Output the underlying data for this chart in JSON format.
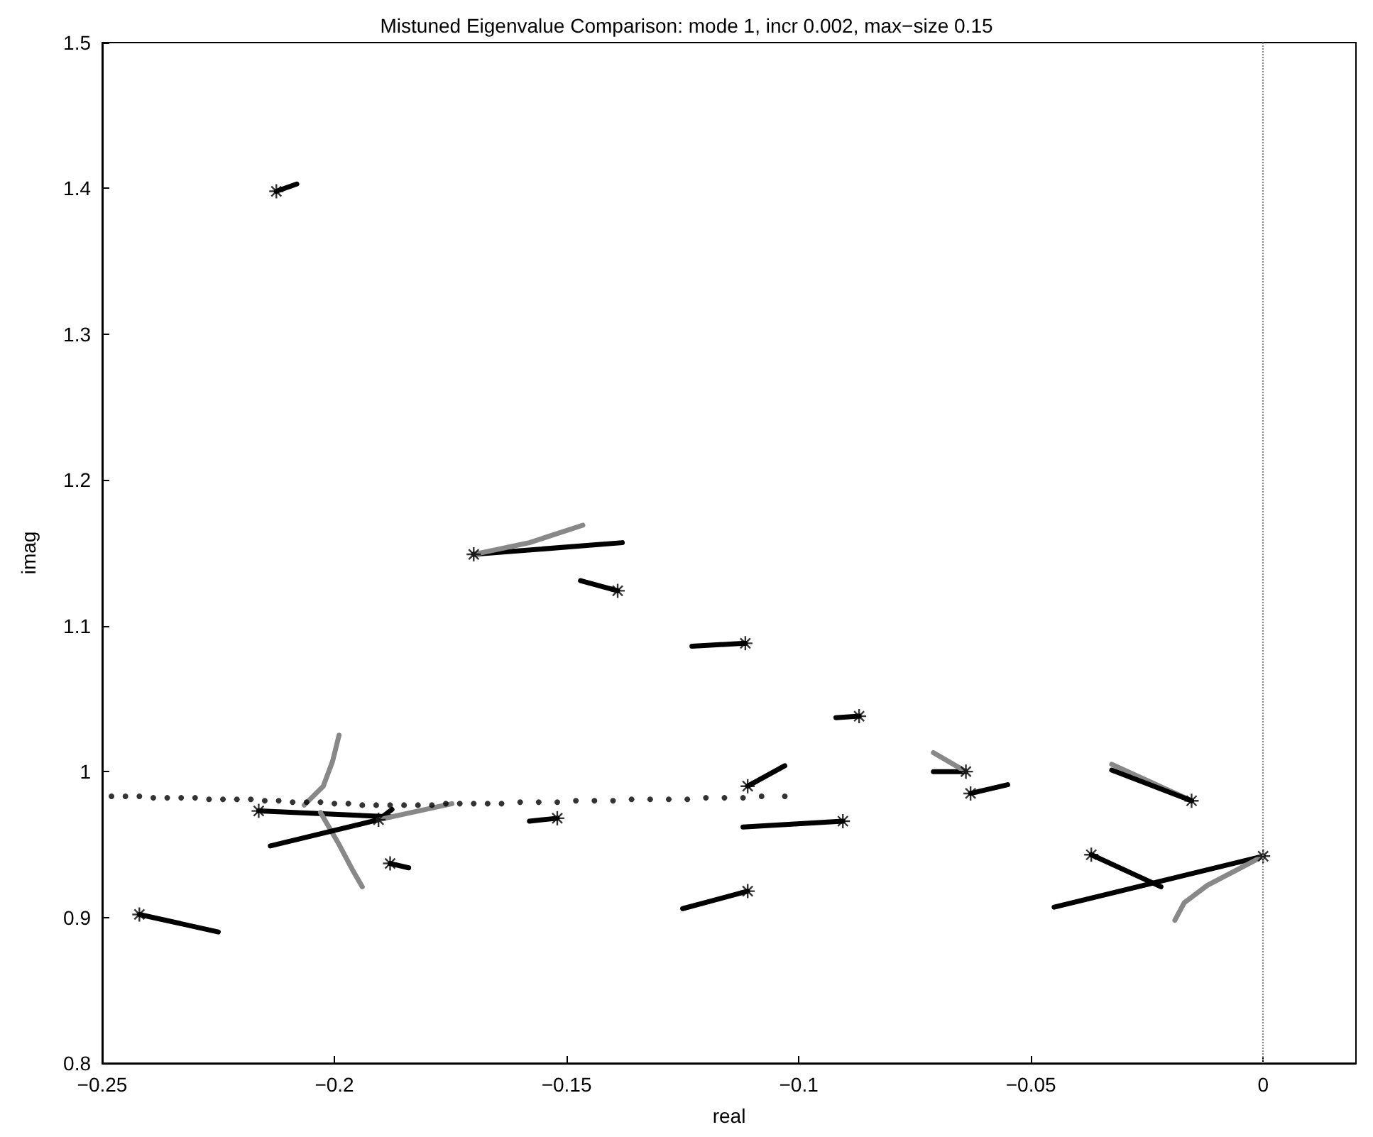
{
  "chart_data": {
    "type": "line",
    "title": "Mistuned Eigenvalue Comparison: mode 1, incr 0.002, max−size 0.15",
    "xlabel": "real",
    "ylabel": "imag",
    "xlim": [
      -0.25,
      0.02
    ],
    "xticks": [
      {
        "value": -0.25,
        "label": "−0.25"
      },
      {
        "value": -0.2,
        "label": "−0.2"
      },
      {
        "value": -0.15,
        "label": "−0.15"
      },
      {
        "value": -0.1,
        "label": "−0.1"
      },
      {
        "value": -0.05,
        "label": "−0.05"
      },
      0
    ],
    "ylim": [
      0.8,
      1.5
    ],
    "yticks": [
      0.8,
      0.9,
      1,
      1.1,
      1.2,
      1.3,
      1.4,
      1.5
    ],
    "grid": false,
    "ref_lines": [
      {
        "axis": "x",
        "value": 0,
        "color": "#888888",
        "line_style": "dotted"
      }
    ],
    "series": [
      {
        "color": "#000000",
        "marker": "none",
        "x": [
          -0.2125,
          -0.2081
        ],
        "values": [
          1.398,
          1.403
        ]
      },
      {
        "color": "#000000",
        "marker": "none",
        "x": [
          -0.17,
          -0.138
        ],
        "values": [
          1.149,
          1.157
        ]
      },
      {
        "color": "#888888",
        "marker": "none",
        "x": [
          -0.17,
          -0.158,
          -0.1465
        ],
        "values": [
          1.149,
          1.157,
          1.169
        ]
      },
      {
        "color": "#000000",
        "marker": "none",
        "x": [
          -0.147,
          -0.139
        ],
        "values": [
          1.131,
          1.124
        ]
      },
      {
        "color": "#000000",
        "marker": "none",
        "x": [
          -0.123,
          -0.1115
        ],
        "values": [
          1.086,
          1.088
        ]
      },
      {
        "color": "#000000",
        "marker": "none",
        "x": [
          -0.092,
          -0.087
        ],
        "values": [
          1.037,
          1.038
        ]
      },
      {
        "color": "#000000",
        "marker": "none",
        "x": [
          -0.111,
          -0.103
        ],
        "values": [
          0.99,
          1.004
        ]
      },
      {
        "color": "#000000",
        "marker": "none",
        "x": [
          -0.112,
          -0.0905
        ],
        "values": [
          0.962,
          0.966
        ]
      },
      {
        "color": "#000000",
        "marker": "none",
        "x": [
          -0.071,
          -0.064
        ],
        "values": [
          1.0,
          1.0
        ]
      },
      {
        "color": "#888888",
        "marker": "none",
        "x": [
          -0.071,
          -0.064
        ],
        "values": [
          1.013,
          1.0
        ]
      },
      {
        "color": "#000000",
        "marker": "none",
        "x": [
          -0.063,
          -0.055
        ],
        "values": [
          0.985,
          0.991
        ]
      },
      {
        "color": "#888888",
        "marker": "none",
        "x": [
          -0.0326,
          -0.0154
        ],
        "values": [
          1.005,
          0.98
        ]
      },
      {
        "color": "#000000",
        "marker": "none",
        "x": [
          -0.0326,
          -0.0154
        ],
        "values": [
          1.001,
          0.98
        ]
      },
      {
        "color": "#000000",
        "marker": "none",
        "x": [
          -0.158,
          -0.152
        ],
        "values": [
          0.966,
          0.968
        ]
      },
      {
        "color": "#000000",
        "marker": "none",
        "x": [
          -0.2163,
          -0.188
        ],
        "values": [
          0.973,
          0.969
        ]
      },
      {
        "color": "#888888",
        "marker": "none",
        "x": [
          -0.2065,
          -0.2024,
          -0.2004,
          -0.199
        ],
        "values": [
          0.977,
          0.99,
          1.007,
          1.025
        ]
      },
      {
        "color": "#888888",
        "marker": "none",
        "x": [
          -0.203,
          -0.199,
          -0.196,
          -0.194
        ],
        "values": [
          0.972,
          0.95,
          0.932,
          0.921
        ]
      },
      {
        "color": "#000000",
        "marker": "none",
        "x": [
          -0.2138,
          -0.1905,
          -0.1876
        ],
        "values": [
          0.949,
          0.967,
          0.974
        ]
      },
      {
        "color": "#888888",
        "marker": "none",
        "x": [
          -0.1905,
          -0.1747
        ],
        "values": [
          0.967,
          0.978
        ]
      },
      {
        "color": "#000000",
        "marker": "none",
        "x": [
          -0.242,
          -0.225
        ],
        "values": [
          0.902,
          0.89
        ]
      },
      {
        "color": "#000000",
        "marker": "none",
        "x": [
          -0.188,
          -0.184
        ],
        "values": [
          0.937,
          0.934
        ]
      },
      {
        "color": "#000000",
        "marker": "none",
        "x": [
          -0.125,
          -0.111
        ],
        "values": [
          0.906,
          0.918
        ]
      },
      {
        "color": "#000000",
        "marker": "none",
        "x": [
          -0.045,
          0
        ],
        "values": [
          0.907,
          0.942
        ]
      },
      {
        "color": "#888888",
        "marker": "none",
        "x": [
          0,
          -0.006,
          -0.012,
          -0.017,
          -0.019
        ],
        "values": [
          0.942,
          0.932,
          0.922,
          0.91,
          0.898
        ]
      },
      {
        "color": "#000000",
        "marker": "none",
        "x": [
          -0.037,
          -0.022
        ],
        "values": [
          0.943,
          0.921
        ]
      },
      {
        "type": "scatter",
        "color": "#000000",
        "marker": "circle",
        "x": [
          -0.248,
          -0.245,
          -0.242,
          -0.239,
          -0.236,
          -0.233,
          -0.23,
          -0.227,
          -0.224,
          -0.221,
          -0.218,
          -0.215,
          -0.212,
          -0.209,
          -0.206,
          -0.203,
          -0.2,
          -0.197,
          -0.194,
          -0.191,
          -0.188,
          -0.185,
          -0.182,
          -0.179,
          -0.176,
          -0.173,
          -0.17,
          -0.167,
          -0.164,
          -0.16,
          -0.156,
          -0.152,
          -0.148,
          -0.144,
          -0.14,
          -0.136,
          -0.132,
          -0.128,
          -0.124,
          -0.12,
          -0.116,
          -0.112,
          -0.108,
          -0.103
        ],
        "values": [
          0.983,
          0.983,
          0.983,
          0.982,
          0.982,
          0.982,
          0.982,
          0.981,
          0.981,
          0.981,
          0.981,
          0.98,
          0.98,
          0.979,
          0.979,
          0.979,
          0.978,
          0.978,
          0.977,
          0.977,
          0.977,
          0.977,
          0.977,
          0.977,
          0.978,
          0.978,
          0.978,
          0.978,
          0.978,
          0.979,
          0.979,
          0.979,
          0.98,
          0.98,
          0.98,
          0.981,
          0.981,
          0.981,
          0.981,
          0.982,
          0.982,
          0.982,
          0.983,
          0.983
        ]
      },
      {
        "type": "scatter",
        "color": "#000000",
        "marker": "cross",
        "x": [
          -0.2125,
          -0.17,
          -0.139,
          -0.1115,
          -0.087,
          -0.111,
          -0.0905,
          -0.064,
          -0.063,
          -0.0154,
          -0.152,
          -0.2163,
          -0.1905,
          -0.242,
          -0.188,
          -0.111,
          0,
          -0.037
        ],
        "values": [
          1.398,
          1.149,
          1.124,
          1.088,
          1.038,
          0.99,
          0.966,
          1.0,
          0.985,
          0.98,
          0.968,
          0.973,
          0.967,
          0.902,
          0.937,
          0.918,
          0.942,
          0.943
        ]
      }
    ]
  }
}
